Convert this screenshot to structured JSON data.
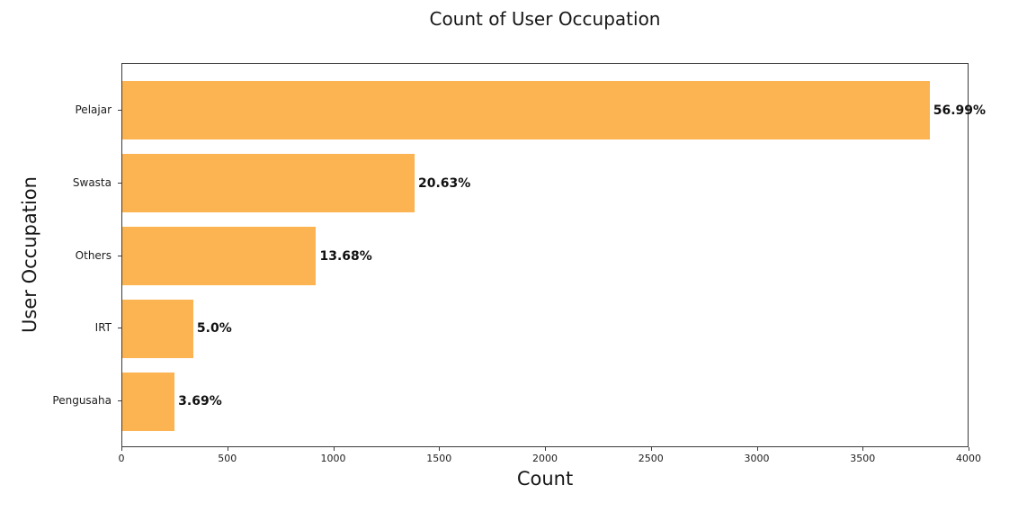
{
  "chart_data": {
    "type": "bar",
    "orientation": "horizontal",
    "title": "Count of User Occupation",
    "xlabel": "Count",
    "ylabel": "User Occupation",
    "categories": [
      "Pelajar",
      "Swasta",
      "Others",
      "IRT",
      "Pengusaha"
    ],
    "values": [
      3812,
      1380,
      915,
      335,
      247
    ],
    "bar_labels": [
      "56.99%",
      "20.63%",
      "13.68%",
      "5.0%",
      "3.69%"
    ],
    "xlim": [
      0,
      4000
    ],
    "xticks": [
      0,
      500,
      1000,
      1500,
      2000,
      2500,
      3000,
      3500,
      4000
    ],
    "grid": false,
    "legend": "none",
    "bar_color": "#FCB351",
    "axis_color": "#3b3b3b",
    "text_color": "#171717",
    "background_color": "#ffffff"
  }
}
